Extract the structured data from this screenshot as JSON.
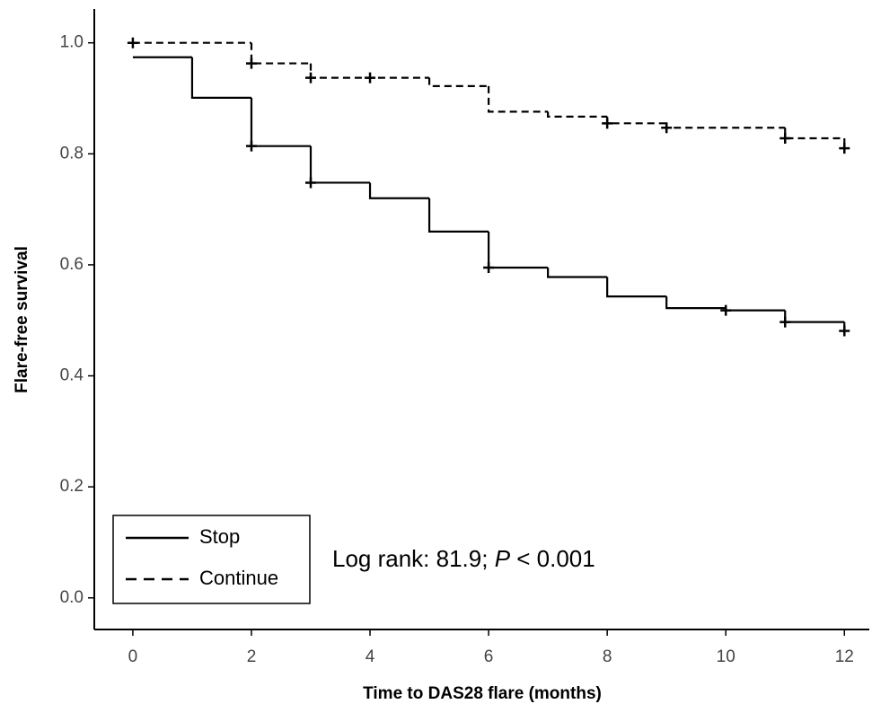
{
  "chart_data": {
    "type": "step",
    "xlabel": "Time to DAS28 flare (months)",
    "ylabel": "Flare-free survival",
    "annotation": [
      "Log rank: 81.9; ",
      "P",
      " < 0.001"
    ],
    "xlim": [
      -0.65,
      12.42
    ],
    "ylim": [
      -0.057,
      1.061
    ],
    "xticks": [
      0,
      2,
      4,
      6,
      8,
      10,
      12
    ],
    "yticks": [
      {
        "value": 0,
        "label": "0.0"
      },
      0.2,
      0.4,
      0.6,
      0.8,
      {
        "value": 1,
        "label": "1.0"
      }
    ],
    "legend": "bottom-left",
    "series": [
      {
        "name": "Stop",
        "color": "#000000",
        "dash": "solid",
        "x": [
          0,
          1,
          2,
          3,
          4,
          5,
          6,
          7,
          8,
          9,
          10,
          11,
          12
        ],
        "values": [
          0.974,
          0.901,
          0.814,
          0.748,
          0.72,
          0.66,
          0.595,
          0.578,
          0.543,
          0.522,
          0.518,
          0.497,
          0.481
        ],
        "censored_x": [
          2,
          3,
          6,
          10,
          11,
          12
        ],
        "censored_values": [
          0.814,
          0.748,
          0.595,
          0.518,
          0.497,
          0.481
        ]
      },
      {
        "name": "Continue",
        "color": "#000000",
        "dash": "dashed",
        "x": [
          0,
          2,
          3,
          5,
          6,
          7,
          8,
          9,
          11,
          12
        ],
        "values": [
          1,
          0.963,
          0.937,
          0.922,
          0.876,
          0.867,
          0.855,
          0.847,
          0.828,
          0.81
        ],
        "censored_x": [
          0,
          2,
          3,
          4,
          8,
          9,
          11,
          12
        ],
        "censored_values": [
          1,
          0.963,
          0.937,
          0.937,
          0.855,
          0.847,
          0.828,
          0.81
        ]
      }
    ]
  }
}
